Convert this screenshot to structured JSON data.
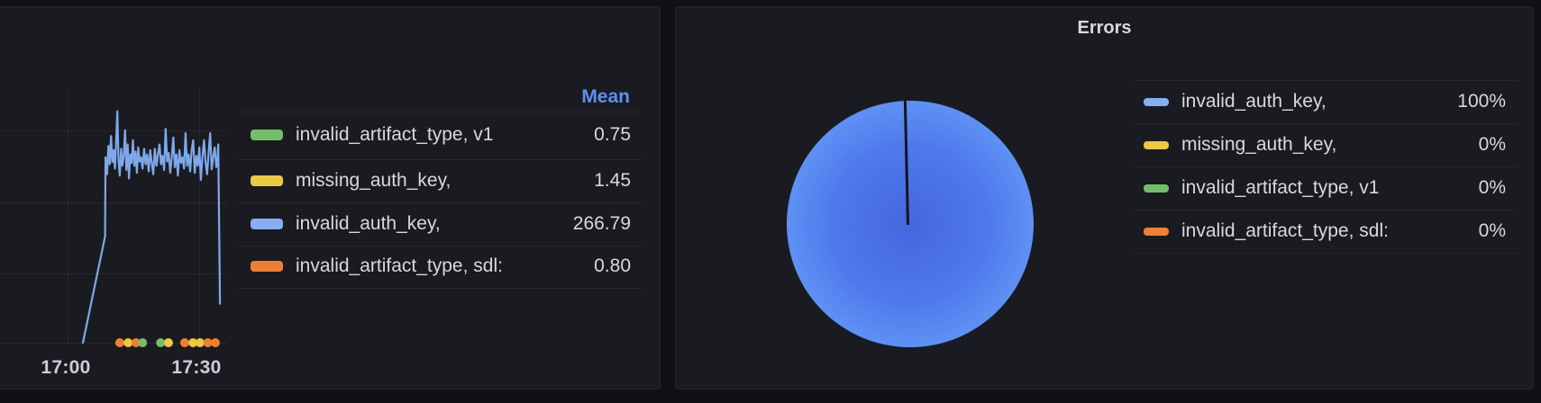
{
  "palette": {
    "green": "#73BF69",
    "yellow": "#EDC93F",
    "blue": "#84AFF1",
    "orange": "#F08031",
    "series_line_blue": "#8AB8FF",
    "mean_header_blue": "#5E90F2"
  },
  "chart_data": [
    {
      "type": "line",
      "panel": "left-timeseries",
      "x_ticks": [
        {
          "label": "17:00",
          "t_min": 0
        },
        {
          "label": "17:30",
          "t_min": 30
        }
      ],
      "y_gridlines": [
        100,
        200,
        300
      ],
      "ylim": [
        0,
        360
      ],
      "series": [
        {
          "name": "invalid_auth_key,",
          "color": "blue",
          "mean": 266.79,
          "points": [
            [
              3.5,
              0
            ],
            [
              8.55,
              150
            ],
            [
              8.65,
              262
            ],
            [
              9.0,
              238
            ],
            [
              9.3,
              278
            ],
            [
              9.6,
              252
            ],
            [
              9.9,
              292
            ],
            [
              10.2,
              255
            ],
            [
              10.5,
              272
            ],
            [
              10.8,
              246
            ],
            [
              11.1,
              288
            ],
            [
              11.35,
              327
            ],
            [
              11.6,
              258
            ],
            [
              11.9,
              236
            ],
            [
              12.2,
              274
            ],
            [
              12.5,
              250
            ],
            [
              12.8,
              264
            ],
            [
              13.1,
              300
            ],
            [
              13.4,
              244
            ],
            [
              13.7,
              280
            ],
            [
              14.0,
              232
            ],
            [
              14.3,
              266
            ],
            [
              14.6,
              254
            ],
            [
              14.9,
              286
            ],
            [
              15.2,
              250
            ],
            [
              15.5,
              270
            ],
            [
              15.8,
              240
            ],
            [
              16.1,
              276
            ],
            [
              16.4,
              256
            ],
            [
              16.75,
              262
            ],
            [
              17.1,
              246
            ],
            [
              17.45,
              274
            ],
            [
              17.8,
              252
            ],
            [
              18.15,
              266
            ],
            [
              18.5,
              242
            ],
            [
              18.85,
              272
            ],
            [
              19.2,
              254
            ],
            [
              19.55,
              238
            ],
            [
              19.9,
              274
            ],
            [
              20.25,
              250
            ],
            [
              20.6,
              266
            ],
            [
              20.95,
              280
            ],
            [
              21.3,
              252
            ],
            [
              21.65,
              264
            ],
            [
              22.0,
              244
            ],
            [
              22.35,
              302
            ],
            [
              22.7,
              256
            ],
            [
              23.05,
              268
            ],
            [
              23.4,
              240
            ],
            [
              23.75,
              262
            ],
            [
              24.1,
              290
            ],
            [
              24.45,
              248
            ],
            [
              24.8,
              266
            ],
            [
              25.15,
              236
            ],
            [
              25.5,
              272
            ],
            [
              25.85,
              254
            ],
            [
              26.2,
              262
            ],
            [
              26.55,
              246
            ],
            [
              26.9,
              296
            ],
            [
              27.25,
              250
            ],
            [
              27.6,
              266
            ],
            [
              27.95,
              242
            ],
            [
              28.3,
              272
            ],
            [
              28.65,
              286
            ],
            [
              29.0,
              240
            ],
            [
              29.35,
              264
            ],
            [
              29.7,
              250
            ],
            [
              30.05,
              276
            ],
            [
              30.4,
              230
            ],
            [
              30.75,
              262
            ],
            [
              31.1,
              286
            ],
            [
              31.45,
              255
            ],
            [
              31.8,
              238
            ],
            [
              32.15,
              268
            ],
            [
              32.5,
              296
            ],
            [
              32.85,
              245
            ],
            [
              33.2,
              262
            ],
            [
              33.55,
              276
            ],
            [
              33.9,
              248
            ],
            [
              34.2,
              262
            ],
            [
              34.35,
              280
            ],
            [
              34.75,
              55
            ]
          ]
        }
      ],
      "event_markers": [
        {
          "t": 11.9,
          "color": "orange"
        },
        {
          "t": 13.8,
          "color": "yellow"
        },
        {
          "t": 15.6,
          "color": "orange"
        },
        {
          "t": 17.1,
          "color": "green"
        },
        {
          "t": 21.2,
          "color": "green"
        },
        {
          "t": 23.0,
          "color": "yellow"
        },
        {
          "t": 26.7,
          "color": "orange"
        },
        {
          "t": 28.6,
          "color": "yellow"
        },
        {
          "t": 30.2,
          "color": "yellow"
        },
        {
          "t": 32.0,
          "color": "orange"
        },
        {
          "t": 33.7,
          "color": "orange"
        }
      ],
      "legend": {
        "header": "Mean",
        "rows": [
          {
            "label": "invalid_artifact_type, v1",
            "value": "0.75",
            "color": "green"
          },
          {
            "label": "missing_auth_key,",
            "value": "1.45",
            "color": "yellow"
          },
          {
            "label": "invalid_auth_key,",
            "value": "266.79",
            "color": "blue"
          },
          {
            "label": "invalid_artifact_type, sdl:",
            "value": "0.80",
            "color": "orange"
          }
        ]
      }
    },
    {
      "type": "pie",
      "title": "Errors",
      "legend_position": "right",
      "slices": [
        {
          "label": "invalid_auth_key,",
          "percent": 100,
          "display": "100%",
          "color": "blue"
        },
        {
          "label": "missing_auth_key,",
          "percent": 0,
          "display": "0%",
          "color": "yellow"
        },
        {
          "label": "invalid_artifact_type, v1",
          "percent": 0,
          "display": "0%",
          "color": "green"
        },
        {
          "label": "invalid_artifact_type, sdl:",
          "percent": 0,
          "display": "0%",
          "color": "orange"
        }
      ]
    }
  ]
}
